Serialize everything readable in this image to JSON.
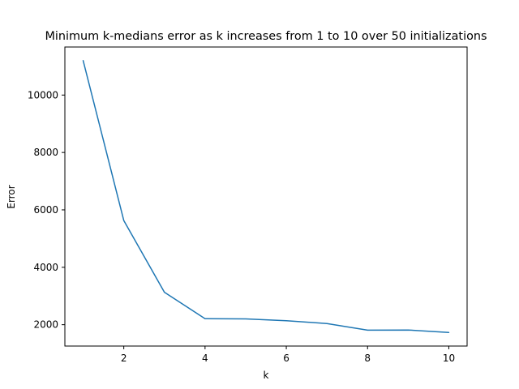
{
  "chart_data": {
    "type": "line",
    "title": "Minimum k-medians error as k increases from 1 to 10 over 50 initializations",
    "xlabel": "k",
    "ylabel": "Error",
    "x": [
      1,
      2,
      3,
      4,
      5,
      6,
      7,
      8,
      9,
      10
    ],
    "series": [
      {
        "values": [
          11200,
          5630,
          3130,
          2210,
          2200,
          2140,
          2040,
          1810,
          1815,
          1730
        ],
        "color": "#1f77b4"
      }
    ],
    "xlim": [
      0.55,
      10.45
    ],
    "ylim": [
      1256,
      11674
    ],
    "xticks": [
      2,
      4,
      6,
      8,
      10
    ],
    "yticks": [
      2000,
      4000,
      6000,
      8000,
      10000
    ],
    "xtick_labels": [
      "2",
      "4",
      "6",
      "8",
      "10"
    ],
    "ytick_labels": [
      "2000",
      "4000",
      "6000",
      "8000",
      "10000"
    ],
    "grid": false,
    "legend": "none"
  }
}
